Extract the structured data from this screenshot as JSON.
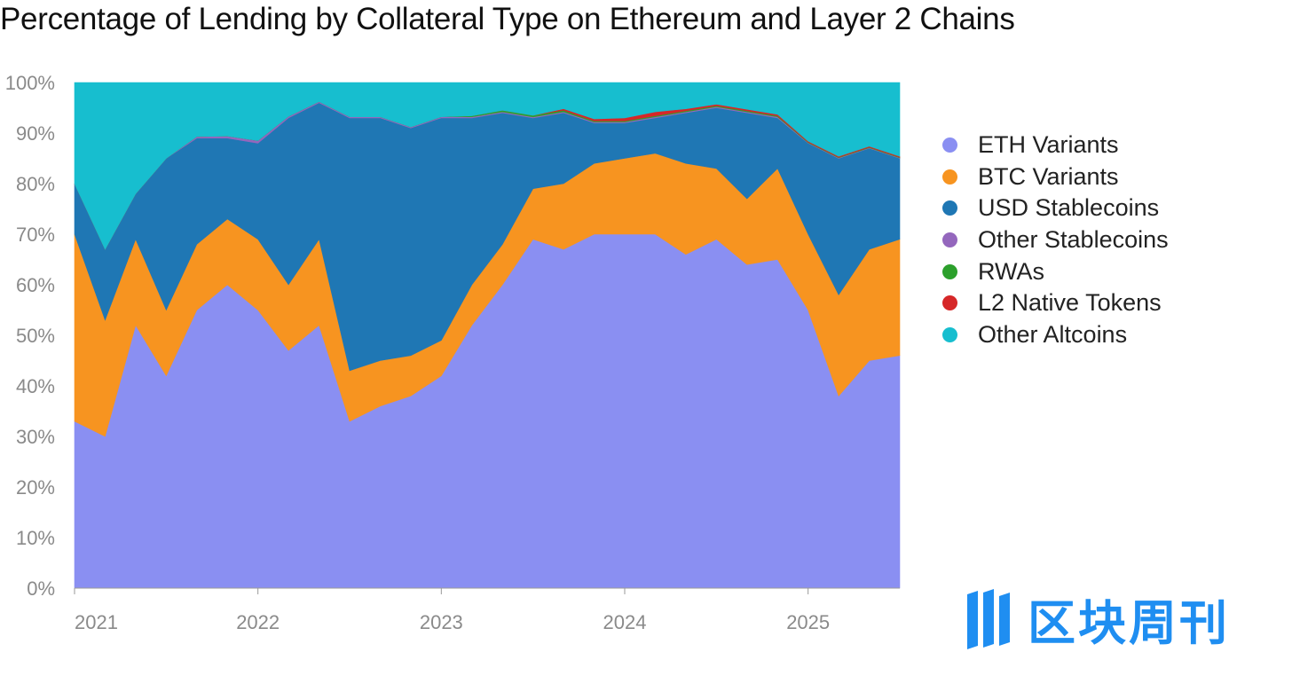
{
  "title": "Percentage of Lending by Collateral Type on Ethereum and Layer 2 Chains",
  "chart_data": {
    "type": "area",
    "stacked": true,
    "normalized": true,
    "title": "Percentage of Lending by Collateral Type on Ethereum and Layer 2 Chains",
    "x": [
      "2021-01",
      "2021-03",
      "2021-05",
      "2021-07",
      "2021-09",
      "2021-11",
      "2022-01",
      "2022-03",
      "2022-05",
      "2022-07",
      "2022-09",
      "2022-11",
      "2023-01",
      "2023-03",
      "2023-05",
      "2023-07",
      "2023-09",
      "2023-11",
      "2024-01",
      "2024-03",
      "2024-05",
      "2024-07",
      "2024-09",
      "2024-11",
      "2025-01",
      "2025-03",
      "2025-05",
      "2025-07"
    ],
    "x_tick_labels": [
      "2021",
      "2022",
      "2023",
      "2024",
      "2025"
    ],
    "xlim": [
      "2021-01",
      "2025-07"
    ],
    "ylim": [
      0,
      100
    ],
    "y_ticks": [
      0,
      10,
      20,
      30,
      40,
      50,
      60,
      70,
      80,
      90,
      100
    ],
    "y_tick_suffix": "%",
    "grid": false,
    "legend_position": "right",
    "series": [
      {
        "name": "ETH Variants",
        "color": "#8a8ff2",
        "values": [
          33,
          30,
          52,
          42,
          55,
          60,
          55,
          47,
          52,
          33,
          36,
          38,
          42,
          52,
          60,
          69,
          67,
          70,
          70,
          70,
          66,
          69,
          64,
          65,
          55,
          38,
          45,
          46
        ]
      },
      {
        "name": "BTC Variants",
        "color": "#f79420",
        "values": [
          37,
          23,
          17,
          13,
          13,
          13,
          14,
          13,
          17,
          10,
          9,
          8,
          7,
          8,
          8,
          10,
          13,
          14,
          15,
          16,
          18,
          14,
          13,
          18,
          15,
          20,
          22,
          23
        ]
      },
      {
        "name": "USD Stablecoins",
        "color": "#1f77b4",
        "values": [
          10,
          14,
          9,
          30,
          21,
          16,
          19,
          33,
          27,
          50,
          48,
          45,
          44,
          33,
          26,
          14,
          14,
          8,
          7,
          7,
          10,
          12,
          17,
          10,
          18,
          27,
          20,
          16
        ]
      },
      {
        "name": "Other Stablecoins",
        "color": "#9467bd",
        "values": [
          0,
          0,
          0,
          0,
          0.3,
          0.4,
          0.5,
          0.3,
          0.2,
          0.2,
          0.2,
          0.2,
          0.2,
          0.2,
          0.2,
          0.2,
          0.2,
          0.2,
          0.2,
          0.2,
          0.2,
          0.2,
          0.2,
          0.2,
          0.1,
          0.1,
          0.1,
          0.1
        ]
      },
      {
        "name": "RWAs",
        "color": "#2ca02c",
        "values": [
          0,
          0,
          0,
          0,
          0,
          0,
          0,
          0,
          0,
          0,
          0,
          0,
          0,
          0.2,
          0.3,
          0.3,
          0.3,
          0.2,
          0.2,
          0.2,
          0.2,
          0.2,
          0.2,
          0.2,
          0.1,
          0.1,
          0.1,
          0.1
        ]
      },
      {
        "name": "L2 Native Tokens",
        "color": "#d62728",
        "values": [
          0,
          0,
          0,
          0,
          0,
          0,
          0,
          0,
          0,
          0,
          0,
          0,
          0,
          0,
          0,
          0,
          0.3,
          0.4,
          0.6,
          0.8,
          0.4,
          0.3,
          0.3,
          0.3,
          0.2,
          0.2,
          0.2,
          0.2
        ]
      },
      {
        "name": "Other Altcoins",
        "color": "#17becf",
        "values": [
          20,
          33,
          22,
          15,
          10.7,
          10.6,
          11.5,
          6.7,
          3.8,
          6.8,
          6.8,
          8.8,
          6.8,
          6.6,
          5.5,
          6.5,
          5.2,
          7.2,
          7,
          5.8,
          5.2,
          4.3,
          5.3,
          6.3,
          11.6,
          14.6,
          12.6,
          14.6
        ]
      }
    ]
  },
  "watermark": {
    "text": "区块周刊",
    "color": "#1f8ef1"
  }
}
